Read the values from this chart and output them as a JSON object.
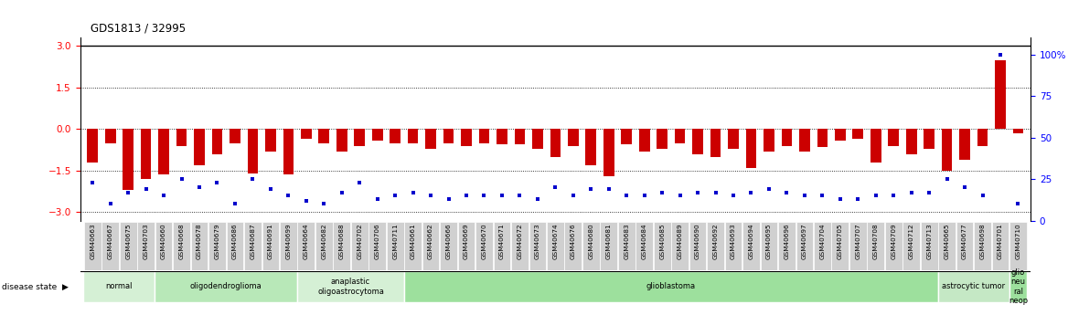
{
  "title": "GDS1813 / 32995",
  "samples": [
    "GSM40663",
    "GSM40667",
    "GSM40675",
    "GSM40703",
    "GSM40660",
    "GSM40668",
    "GSM40678",
    "GSM40679",
    "GSM40686",
    "GSM40687",
    "GSM40691",
    "GSM40699",
    "GSM40664",
    "GSM40682",
    "GSM40688",
    "GSM40702",
    "GSM40706",
    "GSM40711",
    "GSM40661",
    "GSM40662",
    "GSM40666",
    "GSM40669",
    "GSM40670",
    "GSM40671",
    "GSM40672",
    "GSM40673",
    "GSM40674",
    "GSM40676",
    "GSM40680",
    "GSM40681",
    "GSM40683",
    "GSM40684",
    "GSM40685",
    "GSM40689",
    "GSM40690",
    "GSM40692",
    "GSM40693",
    "GSM40694",
    "GSM40695",
    "GSM40696",
    "GSM40697",
    "GSM40704",
    "GSM40705",
    "GSM40707",
    "GSM40708",
    "GSM40709",
    "GSM40712",
    "GSM40713",
    "GSM40665",
    "GSM40677",
    "GSM40698",
    "GSM40701",
    "GSM40710"
  ],
  "log2_ratio": [
    -1.2,
    -0.5,
    -2.2,
    -1.8,
    -1.65,
    -0.6,
    -1.3,
    -0.9,
    -0.5,
    -1.6,
    -0.8,
    -1.65,
    -0.35,
    -0.5,
    -0.8,
    -0.6,
    -0.4,
    -0.5,
    -0.5,
    -0.7,
    -0.5,
    -0.6,
    -0.5,
    -0.55,
    -0.55,
    -0.7,
    -1.0,
    -0.6,
    -1.3,
    -1.7,
    -0.55,
    -0.8,
    -0.7,
    -0.5,
    -0.9,
    -1.0,
    -0.7,
    -1.4,
    -0.8,
    -0.6,
    -0.8,
    -0.65,
    -0.4,
    -0.35,
    -1.2,
    -0.6,
    -0.9,
    -0.7,
    -1.5,
    -1.1,
    -0.6,
    2.5,
    -0.15
  ],
  "percentile": [
    18,
    5,
    12,
    14,
    10,
    20,
    15,
    18,
    5,
    20,
    14,
    10,
    7,
    5,
    12,
    18,
    8,
    10,
    12,
    10,
    8,
    10,
    10,
    10,
    10,
    8,
    15,
    10,
    14,
    14,
    10,
    10,
    12,
    10,
    12,
    12,
    10,
    12,
    14,
    12,
    10,
    10,
    8,
    8,
    10,
    10,
    12,
    12,
    20,
    15,
    10,
    95,
    5
  ],
  "disease_bands": [
    {
      "label": "normal",
      "start": 0,
      "end": 4,
      "color": "#d5f0d5"
    },
    {
      "label": "oligodendroglioma",
      "start": 4,
      "end": 12,
      "color": "#b8e8b8"
    },
    {
      "label": "anaplastic\noligoastrocytoma",
      "start": 12,
      "end": 18,
      "color": "#d5f0d5"
    },
    {
      "label": "glioblastoma",
      "start": 18,
      "end": 48,
      "color": "#9de09d"
    },
    {
      "label": "astrocytic tumor",
      "start": 48,
      "end": 52,
      "color": "#c5e8c5"
    },
    {
      "label": "glio\nneu\nral\nneop",
      "start": 52,
      "end": 53,
      "color": "#9de09d"
    }
  ],
  "bar_color": "#cc0000",
  "dot_color": "#0000cc",
  "yticks_left": [
    -3,
    -1.5,
    0,
    1.5,
    3
  ],
  "yticks_right": [
    0,
    25,
    50,
    75,
    100
  ],
  "ylim_left": [
    -3.3,
    3.3
  ],
  "ylim_right": [
    0,
    110
  ],
  "xlabel_bg": "#d0d0d0",
  "band_border": "#888888"
}
